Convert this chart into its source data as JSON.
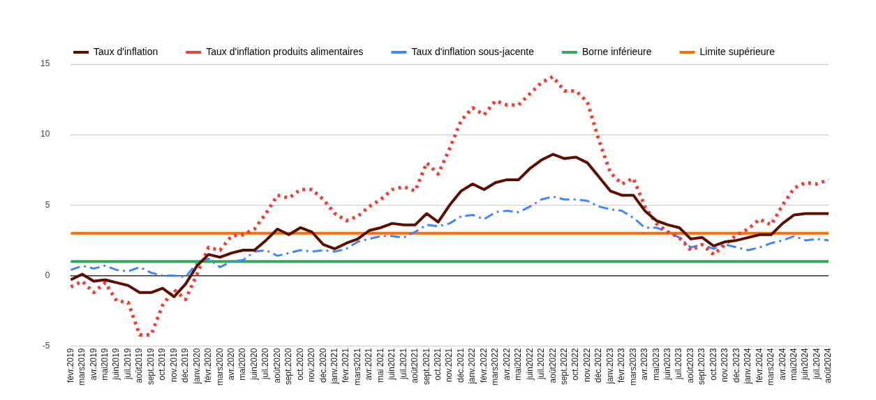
{
  "chart_data": {
    "type": "line",
    "categories": [
      "févr.2019",
      "mars2019",
      "avr.2019",
      "mai2019",
      "juin2019",
      "juil.2019",
      "août2019",
      "sept.2019",
      "oct.2019",
      "nov.2019",
      "déc.2019",
      "janv.2020",
      "févr.2020",
      "mars2020",
      "avr.2020",
      "mai2020",
      "juin2020",
      "juil.2020",
      "août2020",
      "sept.2020",
      "oct.2020",
      "nov.2020",
      "déc.2020",
      "janv.2021",
      "févr.2021",
      "mars2021",
      "avr.2021",
      "mai 2021",
      "juin2021",
      "juil.2021",
      "août2021",
      "sept.2021",
      "oct.2021",
      "nov.2021",
      "déc.2021",
      "janv.2022",
      "févr.2022",
      "mars2022",
      "avr.2022",
      "mai2022",
      "juin2022",
      "juil.2022",
      "août2022",
      "sept.2022",
      "oct.2022",
      "nov.2022",
      "déc.2022",
      "janv.2023",
      "févr.2023",
      "mars2023",
      "avr.2023",
      "mai2023",
      "juin2023",
      "juil.2023",
      "août2023",
      "sept.2023",
      "oct.2023",
      "nov.2023",
      "déc.2023",
      "janv.2024",
      "févr.2024",
      "mars2024",
      "avr.2024",
      "mai2024",
      "juin2024",
      "juil.2024",
      "août2024"
    ],
    "series": [
      {
        "name": "Taux d'inflation",
        "color": "#5b0f00",
        "line_style": "solid",
        "values": [
          -0.3,
          0.1,
          -0.4,
          -0.3,
          -0.5,
          -0.7,
          -1.2,
          -1.2,
          -0.9,
          -1.5,
          -0.6,
          0.7,
          1.5,
          1.3,
          1.6,
          1.8,
          1.8,
          2.5,
          3.3,
          2.9,
          3.4,
          3.1,
          2.2,
          1.9,
          2.3,
          2.6,
          3.2,
          3.4,
          3.7,
          3.6,
          3.6,
          4.4,
          3.8,
          5.0,
          6.0,
          6.5,
          6.1,
          6.6,
          6.8,
          6.8,
          7.6,
          8.2,
          8.6,
          8.3,
          8.4,
          8.0,
          7.0,
          6.0,
          5.7,
          5.7,
          4.6,
          3.9,
          3.6,
          3.4,
          2.6,
          2.7,
          2.1,
          2.4,
          2.5,
          2.7,
          2.9,
          2.9,
          3.7,
          4.3,
          4.4,
          4.4,
          4.4
        ]
      },
      {
        "name": "Taux d'inflation produits alimentaires",
        "color": "#ea4335",
        "line_style": "dotted",
        "values": [
          -0.8,
          -0.4,
          -1.2,
          -0.5,
          -1.8,
          -1.9,
          -4.2,
          -4.2,
          -2.1,
          -1.0,
          -1.7,
          0.1,
          2.0,
          1.8,
          2.8,
          2.9,
          3.3,
          4.4,
          5.7,
          5.5,
          6.1,
          6.1,
          5.4,
          4.4,
          3.9,
          4.2,
          4.9,
          5.4,
          6.1,
          6.3,
          6.0,
          8.0,
          7.2,
          9.0,
          11.0,
          11.9,
          11.4,
          12.4,
          12.1,
          12.1,
          12.9,
          13.7,
          14.1,
          13.1,
          13.1,
          12.3,
          9.6,
          7.3,
          6.5,
          6.9,
          4.9,
          3.7,
          3.1,
          2.7,
          1.8,
          2.2,
          1.5,
          2.2,
          2.9,
          3.3,
          4.0,
          3.6,
          5.0,
          6.2,
          6.6,
          6.5,
          6.8
        ]
      },
      {
        "name": "Taux d'inflation sous-jacente",
        "color": "#4285f4",
        "line_style": "dashed",
        "values": [
          0.4,
          0.7,
          0.5,
          0.7,
          0.4,
          0.3,
          0.6,
          0.2,
          0.0,
          0.0,
          -0.1,
          0.9,
          1.2,
          0.6,
          1.0,
          1.1,
          1.7,
          1.8,
          1.4,
          1.6,
          1.8,
          1.7,
          1.8,
          1.7,
          1.9,
          2.4,
          2.6,
          2.8,
          2.8,
          2.7,
          3.1,
          3.6,
          3.5,
          3.7,
          4.2,
          4.3,
          4.0,
          4.5,
          4.6,
          4.5,
          4.9,
          5.4,
          5.6,
          5.4,
          5.4,
          5.3,
          4.9,
          4.7,
          4.6,
          4.1,
          3.4,
          3.4,
          3.1,
          2.7,
          2.0,
          2.2,
          1.9,
          2.2,
          2.0,
          1.8,
          2.0,
          2.3,
          2.5,
          2.8,
          2.5,
          2.6,
          2.5
        ]
      },
      {
        "name": "Borne inférieure",
        "color": "#34a853",
        "line_style": "solid",
        "values": [
          1,
          1,
          1,
          1,
          1,
          1,
          1,
          1,
          1,
          1,
          1,
          1,
          1,
          1,
          1,
          1,
          1,
          1,
          1,
          1,
          1,
          1,
          1,
          1,
          1,
          1,
          1,
          1,
          1,
          1,
          1,
          1,
          1,
          1,
          1,
          1,
          1,
          1,
          1,
          1,
          1,
          1,
          1,
          1,
          1,
          1,
          1,
          1,
          1,
          1,
          1,
          1,
          1,
          1,
          1,
          1,
          1,
          1,
          1,
          1,
          1,
          1,
          1,
          1,
          1,
          1,
          1
        ]
      },
      {
        "name": "Limite supérieure",
        "color": "#ff6d01",
        "line_style": "solid",
        "values": [
          3,
          3,
          3,
          3,
          3,
          3,
          3,
          3,
          3,
          3,
          3,
          3,
          3,
          3,
          3,
          3,
          3,
          3,
          3,
          3,
          3,
          3,
          3,
          3,
          3,
          3,
          3,
          3,
          3,
          3,
          3,
          3,
          3,
          3,
          3,
          3,
          3,
          3,
          3,
          3,
          3,
          3,
          3,
          3,
          3,
          3,
          3,
          3,
          3,
          3,
          3,
          3,
          3,
          3,
          3,
          3,
          3,
          3,
          3,
          3,
          3,
          3,
          3,
          3,
          3,
          3,
          3
        ]
      }
    ],
    "ylim": [
      -5,
      15
    ],
    "yticks": [
      -5,
      0,
      5,
      10,
      15
    ],
    "grid": "y",
    "legend": "top",
    "marker": "none"
  }
}
